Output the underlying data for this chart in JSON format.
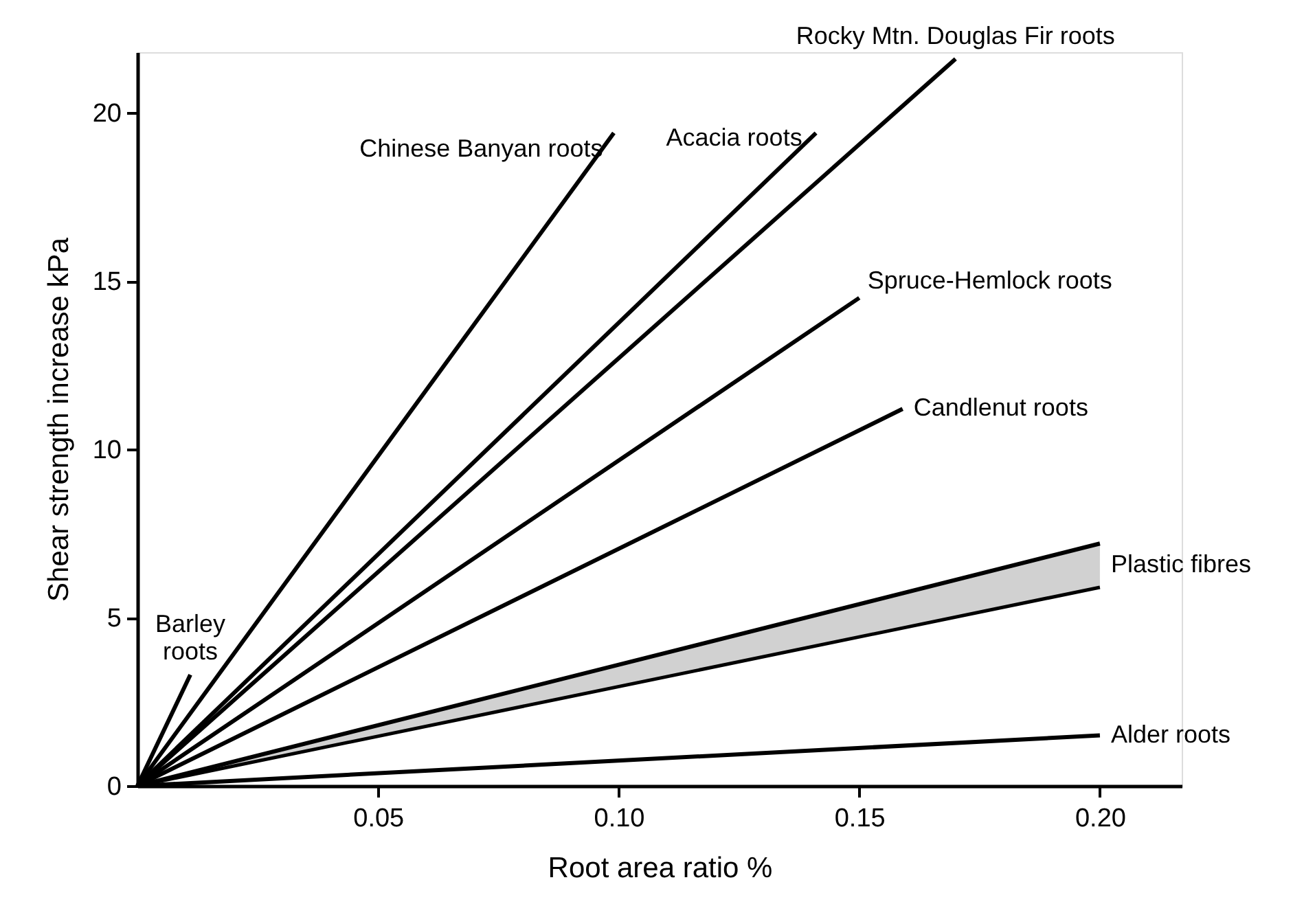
{
  "chart_data": {
    "type": "line",
    "xlabel": "Root area ratio  %",
    "ylabel": "Shear strength increase  kPa",
    "xlim": [
      0,
      0.217
    ],
    "ylim": [
      0,
      21.8
    ],
    "xticks": [
      0.05,
      {
        "value": 0.1,
        "label": "0.10"
      },
      0.15,
      {
        "value": 0.2,
        "label": "0.20"
      }
    ],
    "yticks": [
      0,
      5,
      10,
      15,
      20
    ],
    "grid": false,
    "marker": "none",
    "line_style": "solid",
    "series": [
      {
        "name": "Barley roots",
        "color": "#000000",
        "x": [
          0,
          0.011
        ],
        "values": [
          0,
          3.3
        ]
      },
      {
        "name": "Chinese Banyan roots",
        "color": "#000000",
        "x": [
          0,
          0.099
        ],
        "values": [
          0,
          19.4
        ]
      },
      {
        "name": "Acacia roots",
        "color": "#000000",
        "x": [
          0,
          0.141
        ],
        "values": [
          0,
          19.4
        ]
      },
      {
        "name": "Rocky Mtn. Douglas Fir roots",
        "color": "#000000",
        "x": [
          0,
          0.17
        ],
        "values": [
          0,
          21.6
        ]
      },
      {
        "name": "Spruce-Hemlock roots",
        "color": "#000000",
        "x": [
          0,
          0.15
        ],
        "values": [
          0,
          14.5
        ]
      },
      {
        "name": "Candlenut roots",
        "color": "#000000",
        "x": [
          0,
          0.159
        ],
        "values": [
          0,
          11.2
        ]
      },
      {
        "name": "Plastic fibres",
        "color": "#000000",
        "x": [
          0,
          0.2
        ],
        "values": [
          0,
          7.2
        ],
        "lower": [
          0,
          5.9
        ],
        "upper": [
          0,
          7.2
        ]
      },
      {
        "name": "Alder roots",
        "color": "#000000",
        "x": [
          0,
          0.2
        ],
        "values": [
          0,
          1.5
        ]
      }
    ]
  }
}
